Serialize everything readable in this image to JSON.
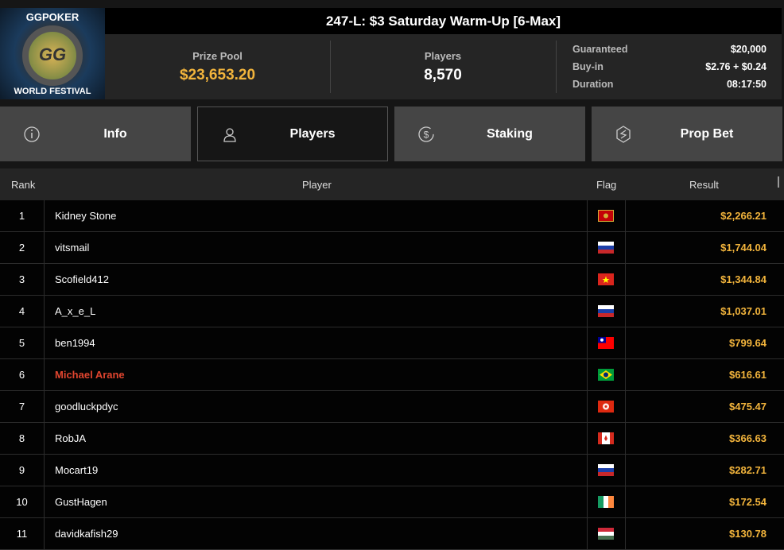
{
  "logo": {
    "text_top": "GGPOKER",
    "text_bottom": "WORLD FESTIVAL",
    "mark": "GG"
  },
  "header": {
    "title": "247-L: $3 Saturday Warm-Up [6-Max]"
  },
  "stats": {
    "prize_pool_label": "Prize Pool",
    "prize_pool": "$23,653.20",
    "players_label": "Players",
    "players": "8,570",
    "details": [
      {
        "label": "Guaranteed",
        "value": "$20,000"
      },
      {
        "label": "Buy-in",
        "value": "$2.76 + $0.24"
      },
      {
        "label": "Duration",
        "value": "08:17:50"
      }
    ]
  },
  "tabs": [
    {
      "label": "Info",
      "icon": "info-icon"
    },
    {
      "label": "Players",
      "icon": "user-icon",
      "active": true
    },
    {
      "label": "Staking",
      "icon": "dollar-coin-icon"
    },
    {
      "label": "Prop Bet",
      "icon": "prop-bet-icon"
    }
  ],
  "table": {
    "headers": {
      "rank": "Rank",
      "player": "Player",
      "flag": "Flag",
      "result": "Result"
    },
    "rows": [
      {
        "rank": "1",
        "player": "Kidney Stone",
        "flag": "montenegro",
        "result": "$2,266.21"
      },
      {
        "rank": "2",
        "player": "vitsmail",
        "flag": "russia",
        "result": "$1,744.04"
      },
      {
        "rank": "3",
        "player": "Scofield412",
        "flag": "vietnam",
        "result": "$1,344.84"
      },
      {
        "rank": "4",
        "player": "A_x_e_L",
        "flag": "russia",
        "result": "$1,037.01"
      },
      {
        "rank": "5",
        "player": "ben1994",
        "flag": "taiwan",
        "result": "$799.64"
      },
      {
        "rank": "6",
        "player": "Michael Arane",
        "flag": "brazil",
        "result": "$616.61",
        "highlight": true
      },
      {
        "rank": "7",
        "player": "goodluckpdyc",
        "flag": "hong-kong",
        "result": "$475.47"
      },
      {
        "rank": "8",
        "player": "RobJA",
        "flag": "canada",
        "result": "$366.63"
      },
      {
        "rank": "9",
        "player": "Mocart19",
        "flag": "russia",
        "result": "$282.71"
      },
      {
        "rank": "10",
        "player": "GustHagen",
        "flag": "ireland",
        "result": "$172.54"
      },
      {
        "rank": "11",
        "player": "davidkafish29",
        "flag": "hungary",
        "result": "$130.78"
      }
    ]
  },
  "colors": {
    "accent": "#f2b43c",
    "highlight": "#e0452f"
  }
}
